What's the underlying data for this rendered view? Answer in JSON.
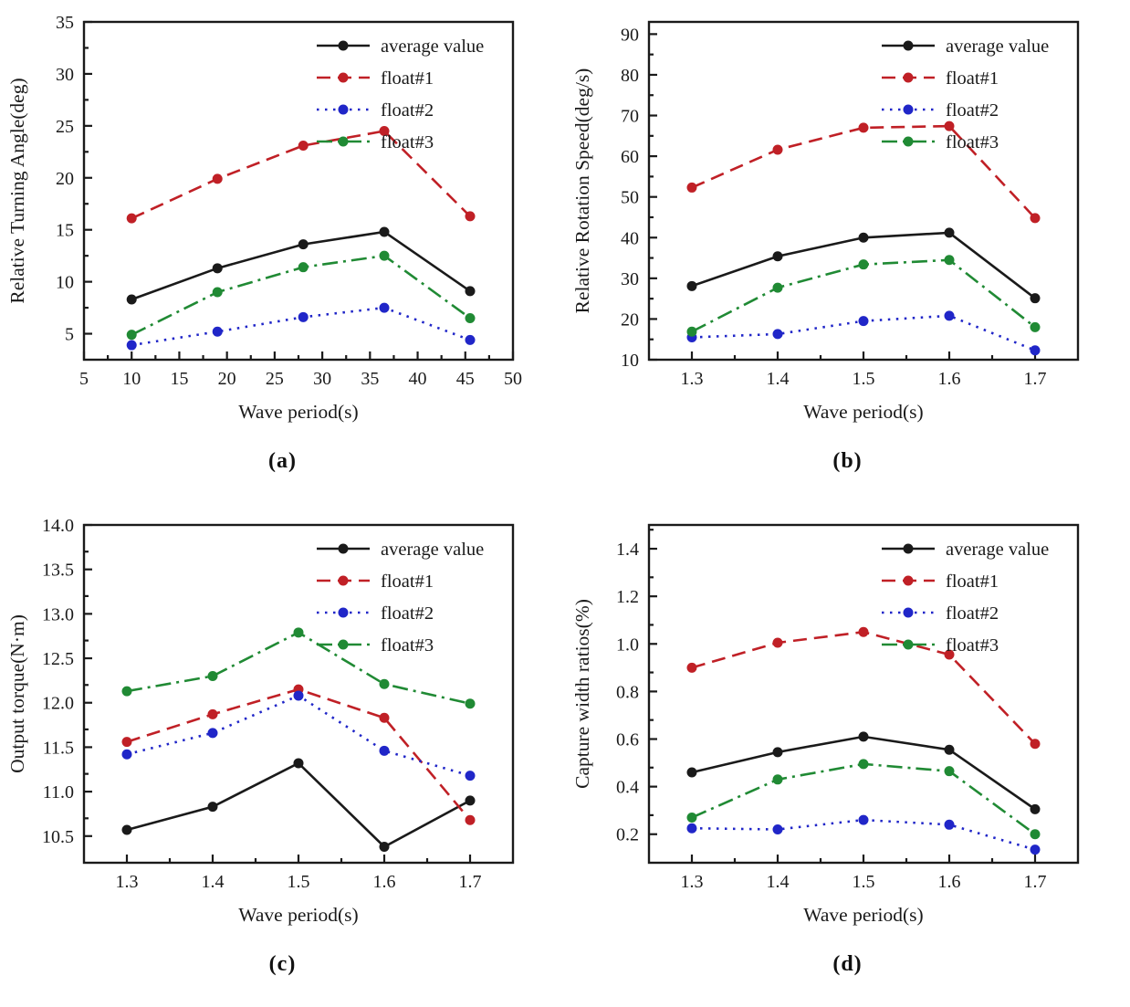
{
  "figure": {
    "type": "four-panel line chart figure",
    "x_axis_label_shared": "Wave period(s)"
  },
  "chart_data": [
    {
      "id": "a",
      "type": "line",
      "caption": "(a)",
      "xlabel": "Wave period(s)",
      "ylabel": "Relative Turning Angle(deg)",
      "x": [
        10,
        19,
        28,
        36.5,
        45.5
      ],
      "xlim": [
        5,
        50
      ],
      "ylim": [
        2.5,
        35
      ],
      "xticks": [
        5,
        10,
        15,
        20,
        25,
        30,
        35,
        40,
        45,
        50
      ],
      "yticks": [
        5,
        10,
        15,
        20,
        25,
        30,
        35
      ],
      "x_minor_step": 2.5,
      "y_minor_step": 2.5,
      "x_decimals": 0,
      "y_decimals": 0,
      "legend_position": "top-right",
      "grid": "off",
      "series": [
        {
          "name": "average value",
          "color": "#1a1a1a",
          "style": "solid",
          "values": [
            8.3,
            11.3,
            13.6,
            14.8,
            9.1
          ]
        },
        {
          "name": "float#1",
          "color": "#c02026",
          "style": "dashed",
          "values": [
            16.1,
            19.9,
            23.1,
            24.5,
            16.3
          ]
        },
        {
          "name": "float#2",
          "color": "#2026c8",
          "style": "dotted",
          "values": [
            3.9,
            5.2,
            6.6,
            7.5,
            4.4
          ]
        },
        {
          "name": "float#3",
          "color": "#208a34",
          "style": "dashdot",
          "values": [
            4.9,
            9.0,
            11.4,
            12.5,
            6.5
          ]
        }
      ]
    },
    {
      "id": "b",
      "type": "line",
      "caption": "(b)",
      "xlabel": "Wave period(s)",
      "ylabel": "Relative Rotation Speed(deg/s)",
      "x": [
        1.3,
        1.4,
        1.5,
        1.6,
        1.7
      ],
      "xlim": [
        1.25,
        1.75
      ],
      "ylim": [
        10,
        93
      ],
      "xticks": [
        1.3,
        1.4,
        1.5,
        1.6,
        1.7
      ],
      "yticks": [
        10,
        20,
        30,
        40,
        50,
        60,
        70,
        80,
        90
      ],
      "x_minor_step": 0.05,
      "y_minor_step": 5,
      "x_decimals": 1,
      "y_decimals": 0,
      "legend_position": "top-right",
      "grid": "off",
      "series": [
        {
          "name": "average value",
          "color": "#1a1a1a",
          "style": "solid",
          "values": [
            28.1,
            35.4,
            40.0,
            41.2,
            25.1
          ]
        },
        {
          "name": "float#1",
          "color": "#c02026",
          "style": "dashed",
          "values": [
            52.3,
            61.6,
            67.0,
            67.4,
            44.8
          ]
        },
        {
          "name": "float#2",
          "color": "#2026c8",
          "style": "dotted",
          "values": [
            15.5,
            16.3,
            19.5,
            20.8,
            12.3
          ]
        },
        {
          "name": "float#3",
          "color": "#208a34",
          "style": "dashdot",
          "values": [
            16.9,
            27.7,
            33.4,
            34.5,
            18.0
          ]
        }
      ]
    },
    {
      "id": "c",
      "type": "line",
      "caption": "(c)",
      "xlabel": "Wave period(s)",
      "ylabel": "Output torque(N·m)",
      "x": [
        1.3,
        1.4,
        1.5,
        1.6,
        1.7
      ],
      "xlim": [
        1.25,
        1.75
      ],
      "ylim": [
        10.2,
        14.0
      ],
      "xticks": [
        1.3,
        1.4,
        1.5,
        1.6,
        1.7
      ],
      "yticks": [
        10.5,
        11.0,
        11.5,
        12.0,
        12.5,
        13.0,
        13.5,
        14.0
      ],
      "x_minor_step": 0.05,
      "y_minor_step": 0.25,
      "x_decimals": 1,
      "y_decimals": 1,
      "legend_position": "top-right",
      "grid": "off",
      "series": [
        {
          "name": "average value",
          "color": "#1a1a1a",
          "style": "solid",
          "values": [
            10.57,
            10.83,
            11.32,
            10.38,
            10.9
          ]
        },
        {
          "name": "float#1",
          "color": "#c02026",
          "style": "dashed",
          "values": [
            11.56,
            11.87,
            12.15,
            11.83,
            10.68
          ]
        },
        {
          "name": "float#2",
          "color": "#2026c8",
          "style": "dotted",
          "values": [
            11.42,
            11.66,
            12.08,
            11.46,
            11.18
          ]
        },
        {
          "name": "float#3",
          "color": "#208a34",
          "style": "dashdot",
          "values": [
            12.13,
            12.3,
            12.79,
            12.21,
            11.99
          ]
        }
      ]
    },
    {
      "id": "d",
      "type": "line",
      "caption": "(d)",
      "xlabel": "Wave period(s)",
      "ylabel": "Capture width ratios(%)",
      "x": [
        1.3,
        1.4,
        1.5,
        1.6,
        1.7
      ],
      "xlim": [
        1.25,
        1.75
      ],
      "ylim": [
        0.08,
        1.5
      ],
      "xticks": [
        1.3,
        1.4,
        1.5,
        1.6,
        1.7
      ],
      "yticks": [
        0.2,
        0.4,
        0.6,
        0.8,
        1.0,
        1.2,
        1.4
      ],
      "x_minor_step": 0.05,
      "y_minor_step": 0.1,
      "x_decimals": 1,
      "y_decimals": 1,
      "legend_position": "top-right",
      "grid": "off",
      "series": [
        {
          "name": "average value",
          "color": "#1a1a1a",
          "style": "solid",
          "values": [
            0.46,
            0.545,
            0.61,
            0.555,
            0.305
          ]
        },
        {
          "name": "float#1",
          "color": "#c02026",
          "style": "dashed",
          "values": [
            0.9,
            1.005,
            1.05,
            0.955,
            0.58
          ]
        },
        {
          "name": "float#2",
          "color": "#2026c8",
          "style": "dotted",
          "values": [
            0.225,
            0.22,
            0.26,
            0.24,
            0.135
          ]
        },
        {
          "name": "float#3",
          "color": "#208a34",
          "style": "dashdot",
          "values": [
            0.27,
            0.43,
            0.495,
            0.465,
            0.2
          ]
        }
      ]
    }
  ]
}
